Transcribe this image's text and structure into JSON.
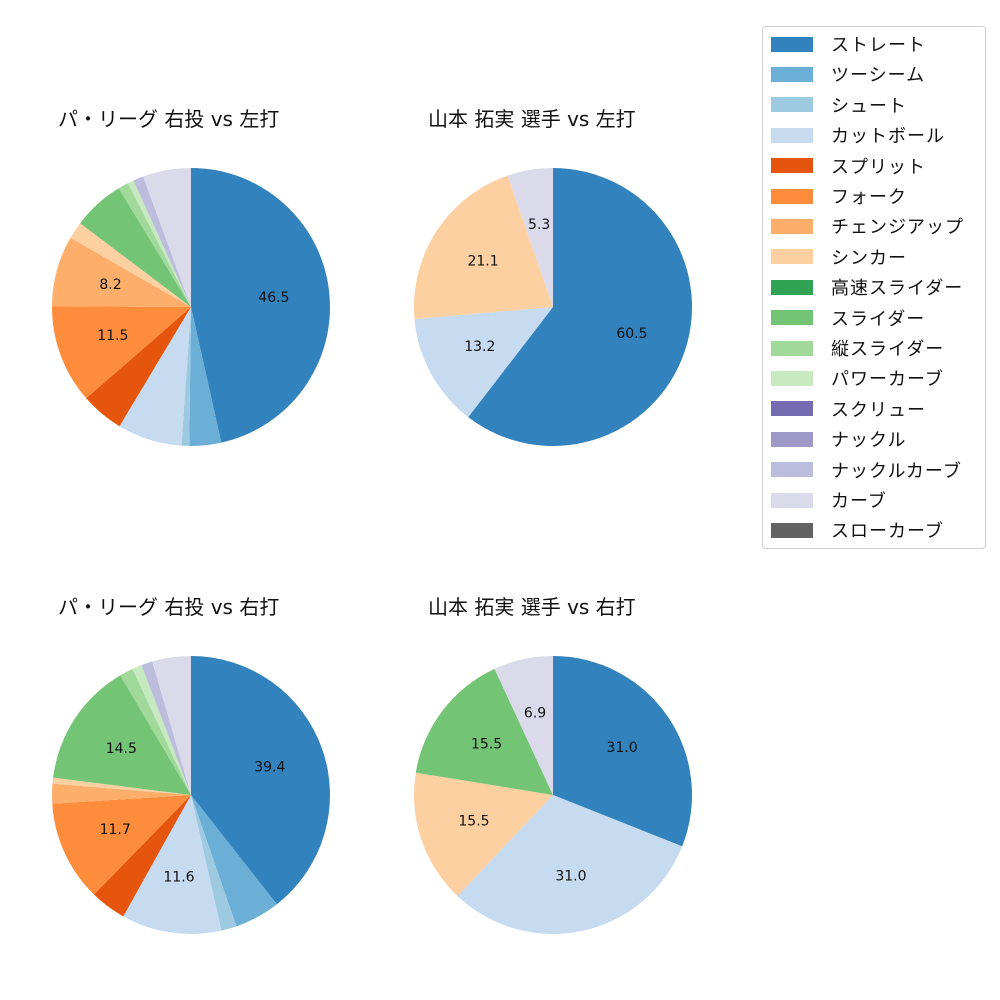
{
  "legend": {
    "items": [
      {
        "label": "ストレート",
        "color": "#3182bd"
      },
      {
        "label": "ツーシーム",
        "color": "#6baed6"
      },
      {
        "label": "シュート",
        "color": "#9ecae1"
      },
      {
        "label": "カットボール",
        "color": "#c6dbef"
      },
      {
        "label": "スプリット",
        "color": "#e6550d"
      },
      {
        "label": "フォーク",
        "color": "#fd8d3c"
      },
      {
        "label": "チェンジアップ",
        "color": "#fdae6b"
      },
      {
        "label": "シンカー",
        "color": "#fdd0a2"
      },
      {
        "label": "高速スライダー",
        "color": "#31a354"
      },
      {
        "label": "スライダー",
        "color": "#74c476"
      },
      {
        "label": "縦スライダー",
        "color": "#a1d99b"
      },
      {
        "label": "パワーカーブ",
        "color": "#c7e9c0"
      },
      {
        "label": "スクリュー",
        "color": "#756bb1"
      },
      {
        "label": "ナックル",
        "color": "#9e9ac8"
      },
      {
        "label": "ナックルカーブ",
        "color": "#bcbddc"
      },
      {
        "label": "カーブ",
        "color": "#dadaeb"
      },
      {
        "label": "スローカーブ",
        "color": "#636363"
      }
    ]
  },
  "chart_data": [
    {
      "type": "pie",
      "title": "パ・リーグ 右投 vs 左打",
      "categories": [
        "ストレート",
        "ツーシーム",
        "シュート",
        "カットボール",
        "スプリット",
        "フォーク",
        "チェンジアップ",
        "シンカー",
        "スライダー",
        "縦スライダー",
        "パワーカーブ",
        "ナックルカーブ",
        "カーブ"
      ],
      "values": [
        46.5,
        3.7,
        0.9,
        7.5,
        5.0,
        11.5,
        8.2,
        2.0,
        6.0,
        1.2,
        0.7,
        1.2,
        5.6
      ],
      "labels_shown": [
        "46.5",
        "",
        "",
        "",
        "",
        "11.5",
        "8.2",
        "",
        "",
        "",
        "",
        "",
        ""
      ],
      "start_angle": 90,
      "direction": "clockwise"
    },
    {
      "type": "pie",
      "title": "山本 拓実 選手 vs 左打",
      "categories": [
        "ストレート",
        "カットボール",
        "シンカー",
        "カーブ"
      ],
      "values": [
        60.5,
        13.2,
        21.1,
        5.3
      ],
      "labels_shown": [
        "60.5",
        "13.2",
        "21.1",
        "5.3"
      ],
      "start_angle": 90,
      "direction": "clockwise"
    },
    {
      "type": "pie",
      "title": "パ・リーグ 右投 vs 右打",
      "categories": [
        "ストレート",
        "ツーシーム",
        "シュート",
        "カットボール",
        "スプリット",
        "フォーク",
        "チェンジアップ",
        "シンカー",
        "スライダー",
        "縦スライダー",
        "パワーカーブ",
        "ナックルカーブ",
        "カーブ"
      ],
      "values": [
        39.4,
        5.3,
        1.8,
        11.6,
        4.2,
        11.7,
        2.3,
        0.7,
        14.5,
        1.6,
        1.1,
        1.3,
        4.5
      ],
      "labels_shown": [
        "39.4",
        "",
        "",
        "11.6",
        "",
        "11.7",
        "",
        "",
        "14.5",
        "",
        "",
        "",
        ""
      ],
      "start_angle": 90,
      "direction": "clockwise"
    },
    {
      "type": "pie",
      "title": "山本 拓実 選手 vs 右打",
      "categories": [
        "ストレート",
        "カットボール",
        "シンカー",
        "スライダー",
        "カーブ"
      ],
      "values": [
        31.0,
        31.0,
        15.5,
        15.5,
        6.9
      ],
      "labels_shown": [
        "31.0",
        "31.0",
        "15.5",
        "15.5",
        "6.9"
      ],
      "start_angle": 90,
      "direction": "clockwise"
    }
  ]
}
